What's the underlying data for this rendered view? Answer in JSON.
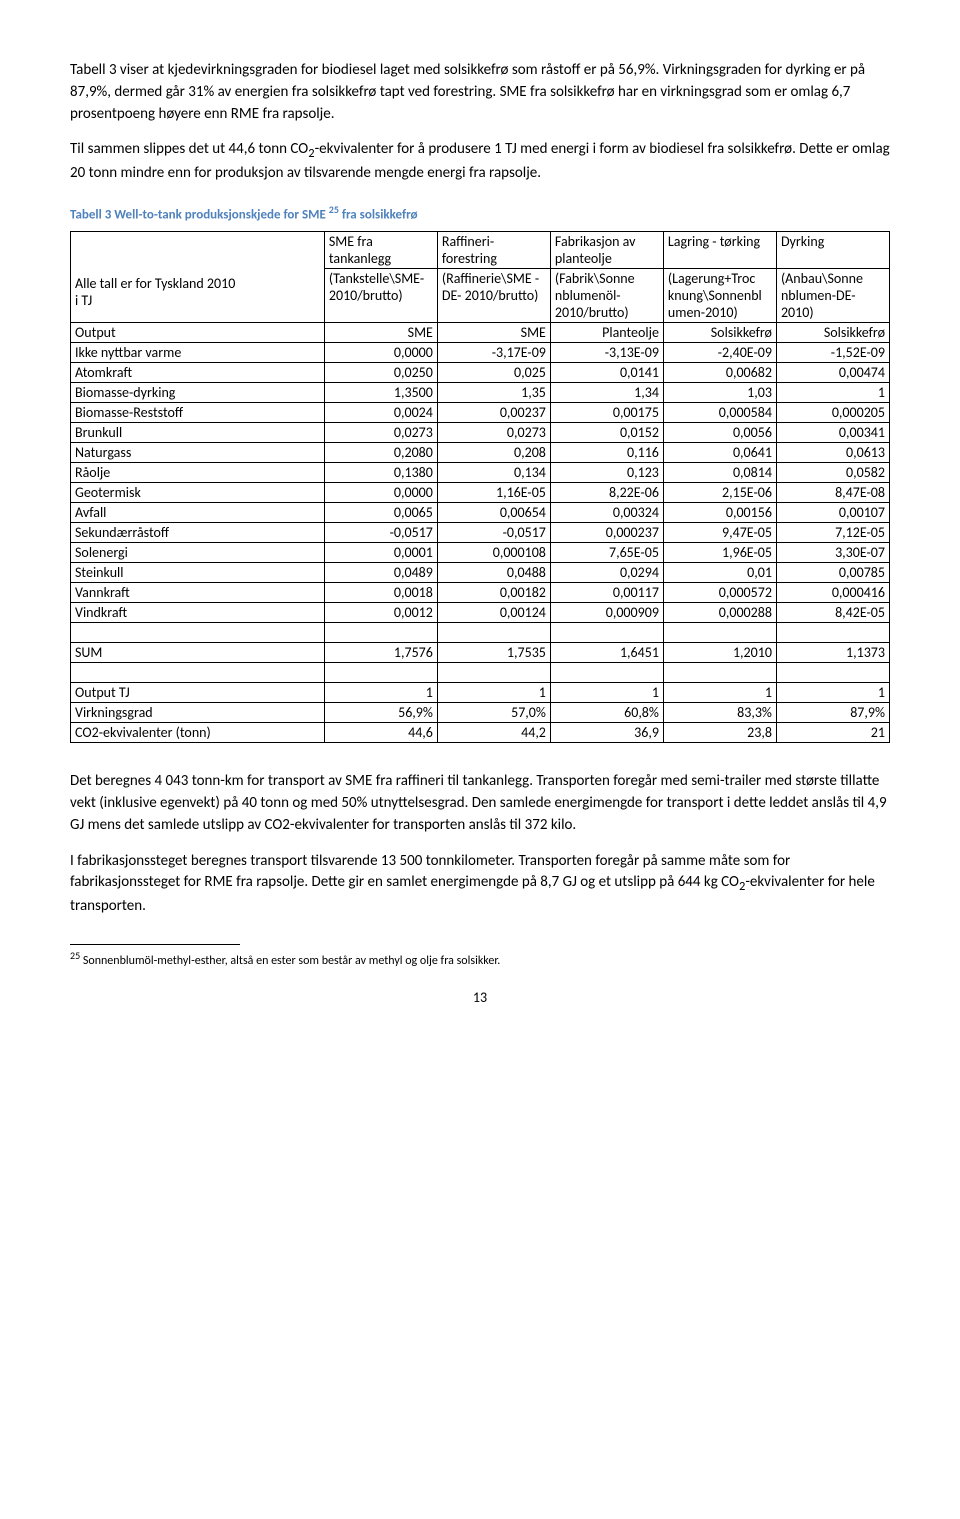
{
  "para1a": "Tabell 3 viser at kjedevirkningsgraden for biodiesel laget med solsikkefrø som råstoff er på 56,9%. Virkningsgraden for dyrking er på 87,9%, dermed går 31% av energien fra solsikkefrø tapt ved forestring. SME fra solsikkefrø har en virkningsgrad som er omlag 6,7 prosentpoeng høyere enn RME fra rapsolje.",
  "para1b_a": "Til sammen slippes det ut 44,6 tonn CO",
  "para1b_b": "-ekvivalenter for å produsere 1 TJ med energi i form av biodiesel fra solsikkefrø. Dette er omlag 20 tonn mindre enn for produksjon av tilsvarende mengde energi fra rapsolje.",
  "caption_a": "Tabell 3 Well-to-tank produksjonskjede for SME ",
  "caption_b": " fra solsikkefrø",
  "header_left_a": "Alle tall er for Tyskland 2010",
  "header_left_b": "i TJ",
  "cols": [
    {
      "top": "SME fra tankanlegg",
      "sub": "(Tankstelle\\SME- 2010/brutto)"
    },
    {
      "top": "Raffineri- forestring",
      "sub": "(Raffinerie\\SME -DE- 2010/brutto)"
    },
    {
      "top": "Fabrikasjon av planteolje",
      "sub": "(Fabrik\\Sonne nblumenöl- 2010/brutto)"
    },
    {
      "top": "Lagring - tørking",
      "sub": "(Lagerung+Troc knung\\Sonnenbl umen-2010)"
    },
    {
      "top": "Dyrking",
      "sub": "(Anbau\\Sonne nblumen-DE- 2010)"
    }
  ],
  "rows": [
    [
      "Output",
      "SME",
      "SME",
      "Planteolje",
      "Solsikkefrø",
      "Solsikkefrø"
    ],
    [
      "Ikke nyttbar varme",
      "0,0000",
      "-3,17E-09",
      "-3,13E-09",
      "-2,40E-09",
      "-1,52E-09"
    ],
    [
      "Atomkraft",
      "0,0250",
      "0,025",
      "0,0141",
      "0,00682",
      "0,00474"
    ],
    [
      "Biomasse-dyrking",
      "1,3500",
      "1,35",
      "1,34",
      "1,03",
      "1"
    ],
    [
      "Biomasse-Reststoff",
      "0,0024",
      "0,00237",
      "0,00175",
      "0,000584",
      "0,000205"
    ],
    [
      "Brunkull",
      "0,0273",
      "0,0273",
      "0,0152",
      "0,0056",
      "0,00341"
    ],
    [
      "Naturgass",
      "0,2080",
      "0,208",
      "0,116",
      "0,0641",
      "0,0613"
    ],
    [
      "Råolje",
      "0,1380",
      "0,134",
      "0,123",
      "0,0814",
      "0,0582"
    ],
    [
      "Geotermisk",
      "0,0000",
      "1,16E-05",
      "8,22E-06",
      "2,15E-06",
      "8,47E-08"
    ],
    [
      "Avfall",
      "0,0065",
      "0,00654",
      "0,00324",
      "0,00156",
      "0,00107"
    ],
    [
      "Sekundærråstoff",
      "-0,0517",
      "-0,0517",
      "0,000237",
      "9,47E-05",
      "7,12E-05"
    ],
    [
      "Solenergi",
      "0,0001",
      "0,000108",
      "7,65E-05",
      "1,96E-05",
      "3,30E-07"
    ],
    [
      "Steinkull",
      "0,0489",
      "0,0488",
      "0,0294",
      "0,01",
      "0,00785"
    ],
    [
      "Vannkraft",
      "0,0018",
      "0,00182",
      "0,00117",
      "0,000572",
      "0,000416"
    ],
    [
      "Vindkraft",
      "0,0012",
      "0,00124",
      "0,000909",
      "0,000288",
      "8,42E-05"
    ],
    [
      "",
      "",
      "",
      "",
      "",
      ""
    ],
    [
      "SUM",
      "1,7576",
      "1,7535",
      "1,6451",
      "1,2010",
      "1,1373"
    ],
    [
      "",
      "",
      "",
      "",
      "",
      ""
    ],
    [
      "Output TJ",
      "1",
      "1",
      "1",
      "1",
      "1"
    ],
    [
      "Virkningsgrad",
      "56,9%",
      "57,0%",
      "60,8%",
      "83,3%",
      "87,9%"
    ],
    [
      "CO2-ekvivalenter (tonn)",
      "44,6",
      "44,2",
      "36,9",
      "23,8",
      "21"
    ]
  ],
  "para2": "Det beregnes 4 043 tonn-km for transport av SME fra raffineri til tankanlegg. Transporten foregår med semi-trailer med største tillatte vekt (inklusive egenvekt) på 40 tonn og med 50% utnyttelsesgrad. Den samlede energimengde for transport i dette leddet anslås til 4,9 GJ mens det samlede utslipp av CO2-ekvivalenter for transporten anslås til 372 kilo.",
  "para3_a": "I fabrikasjonssteget beregnes transport tilsvarende 13 500 tonnkilometer. Transporten foregår på samme måte som for fabrikasjonssteget for RME fra rapsolje. Dette gir en samlet energimengde på 8,7 GJ og et utslipp på 644 kg CO",
  "para3_b": "-ekvivalenter for hele transporten.",
  "footnote_num": "25",
  "footnote_txt": " Sonnenblumöl-methyl-esther, altså en ester som består av methyl og olje fra solsikker.",
  "pagenum": "13"
}
